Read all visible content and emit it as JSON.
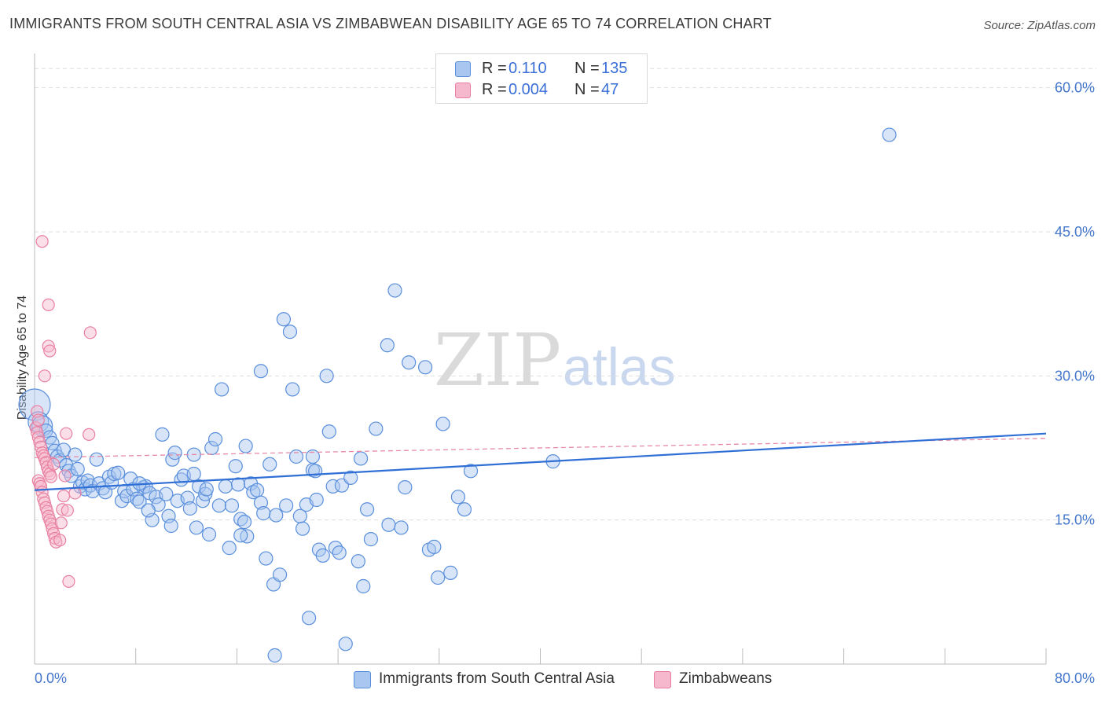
{
  "title": "IMMIGRANTS FROM SOUTH CENTRAL ASIA VS ZIMBABWEAN DISABILITY AGE 65 TO 74 CORRELATION CHART",
  "source": "Source: ZipAtlas.com",
  "watermark": {
    "zip": "ZIP",
    "atlas": "atlas"
  },
  "legend": {
    "rows": [
      {
        "r_key": "R =",
        "r_value": "0.110",
        "n_key": "N =",
        "n_value": "135"
      },
      {
        "r_key": "R =",
        "r_value": "0.004",
        "n_key": "N =",
        "n_value": "47"
      }
    ]
  },
  "bottom_legend": [
    "Immigrants from South Central Asia",
    "Zimbabweans"
  ],
  "colors": {
    "blue_fill": "#a9c6f0",
    "blue_stroke": "#5a8fdc",
    "blue_line": "#2f6fd6",
    "pink_fill": "#f6b8cc",
    "pink_stroke": "#e87fa0",
    "pink_line": "#e68aa6",
    "grid": "#dddddd",
    "tick_text": "#4477cc"
  },
  "chart_data": {
    "type": "scatter",
    "title": "IMMIGRANTS FROM SOUTH CENTRAL ASIA VS ZIMBABWEAN DISABILITY AGE 65 TO 74 CORRELATION CHART",
    "xlabel": "",
    "ylabel": "Disability Age 65 to 74",
    "xlim": [
      0,
      80
    ],
    "ylim": [
      0,
      63
    ],
    "x_tick_labels": [
      "0.0%",
      "80.0%"
    ],
    "y_ticks": [
      15,
      30,
      45,
      60
    ],
    "y_tick_labels": [
      "15.0%",
      "30.0%",
      "45.0%",
      "60.0%"
    ],
    "grid": "horizontal dashed",
    "legend_position": "top-center",
    "series": [
      {
        "name": "Immigrants from South Central Asia",
        "color": "#a9c6f0",
        "stats": {
          "R": 0.11,
          "N": 135
        },
        "trend": {
          "x": [
            0,
            80
          ],
          "y": [
            18.1,
            24.0
          ]
        },
        "points": [
          [
            0.0,
            27.0
          ],
          [
            0.3,
            25.2
          ],
          [
            0.6,
            24.8
          ],
          [
            0.9,
            24.3
          ],
          [
            1.2,
            23.6
          ],
          [
            1.4,
            23.0
          ],
          [
            1.6,
            22.2
          ],
          [
            1.8,
            21.6
          ],
          [
            2.0,
            21.2
          ],
          [
            2.3,
            22.3
          ],
          [
            2.5,
            20.7
          ],
          [
            2.7,
            20.1
          ],
          [
            2.9,
            19.6
          ],
          [
            3.2,
            21.8
          ],
          [
            3.4,
            20.3
          ],
          [
            3.6,
            18.5
          ],
          [
            3.8,
            18.9
          ],
          [
            4.0,
            18.2
          ],
          [
            4.2,
            19.1
          ],
          [
            4.4,
            18.6
          ],
          [
            4.6,
            18.0
          ],
          [
            4.9,
            21.3
          ],
          [
            5.1,
            18.8
          ],
          [
            5.4,
            18.3
          ],
          [
            5.6,
            17.9
          ],
          [
            5.9,
            19.5
          ],
          [
            6.1,
            18.9
          ],
          [
            6.3,
            19.8
          ],
          [
            6.6,
            19.9
          ],
          [
            6.9,
            17.0
          ],
          [
            7.1,
            18.0
          ],
          [
            7.3,
            17.5
          ],
          [
            7.6,
            19.3
          ],
          [
            7.8,
            18.2
          ],
          [
            8.1,
            17.2
          ],
          [
            8.3,
            16.9
          ],
          [
            8.6,
            18.4
          ],
          [
            8.8,
            18.5
          ],
          [
            9.1,
            17.8
          ],
          [
            9.3,
            15.0
          ],
          [
            9.6,
            17.4
          ],
          [
            9.8,
            16.6
          ],
          [
            10.1,
            23.9
          ],
          [
            10.4,
            17.7
          ],
          [
            10.6,
            15.4
          ],
          [
            10.9,
            21.3
          ],
          [
            11.1,
            22.0
          ],
          [
            11.3,
            17.0
          ],
          [
            11.6,
            19.2
          ],
          [
            11.8,
            19.6
          ],
          [
            12.1,
            17.3
          ],
          [
            12.3,
            16.2
          ],
          [
            12.6,
            19.8
          ],
          [
            12.8,
            14.2
          ],
          [
            13.0,
            18.5
          ],
          [
            13.3,
            17.0
          ],
          [
            13.5,
            17.7
          ],
          [
            13.8,
            13.5
          ],
          [
            14.0,
            22.5
          ],
          [
            14.3,
            23.4
          ],
          [
            14.6,
            16.5
          ],
          [
            14.8,
            28.6
          ],
          [
            15.1,
            18.5
          ],
          [
            15.4,
            12.1
          ],
          [
            15.6,
            16.5
          ],
          [
            15.9,
            20.6
          ],
          [
            16.1,
            18.7
          ],
          [
            16.3,
            15.1
          ],
          [
            16.6,
            14.8
          ],
          [
            16.8,
            13.3
          ],
          [
            17.1,
            18.8
          ],
          [
            17.3,
            17.9
          ],
          [
            17.6,
            18.1
          ],
          [
            17.9,
            16.8
          ],
          [
            18.1,
            15.7
          ],
          [
            18.3,
            11.0
          ],
          [
            18.6,
            20.8
          ],
          [
            18.9,
            8.3
          ],
          [
            19.1,
            15.5
          ],
          [
            19.4,
            9.3
          ],
          [
            19.7,
            35.9
          ],
          [
            19.9,
            16.5
          ],
          [
            20.2,
            34.6
          ],
          [
            20.4,
            28.6
          ],
          [
            20.7,
            21.6
          ],
          [
            21.0,
            15.4
          ],
          [
            21.2,
            14.1
          ],
          [
            21.5,
            16.6
          ],
          [
            21.7,
            4.8
          ],
          [
            22.0,
            20.2
          ],
          [
            22.3,
            17.1
          ],
          [
            22.5,
            11.9
          ],
          [
            22.8,
            11.3
          ],
          [
            23.1,
            30.0
          ],
          [
            23.3,
            24.2
          ],
          [
            23.6,
            18.5
          ],
          [
            23.8,
            12.1
          ],
          [
            24.1,
            11.6
          ],
          [
            24.3,
            18.6
          ],
          [
            24.6,
            2.1
          ],
          [
            25.0,
            19.4
          ],
          [
            25.6,
            10.7
          ],
          [
            26.0,
            8.1
          ],
          [
            26.3,
            16.1
          ],
          [
            26.6,
            13.0
          ],
          [
            27.0,
            24.5
          ],
          [
            28.0,
            14.5
          ],
          [
            28.5,
            38.9
          ],
          [
            29.0,
            14.2
          ],
          [
            29.3,
            18.4
          ],
          [
            31.2,
            11.9
          ],
          [
            31.6,
            12.2
          ],
          [
            31.9,
            9.0
          ],
          [
            32.3,
            25.0
          ],
          [
            32.9,
            9.5
          ],
          [
            33.5,
            17.4
          ],
          [
            34.0,
            16.1
          ],
          [
            34.5,
            20.1
          ],
          [
            41.0,
            21.1
          ],
          [
            67.6,
            55.1
          ],
          [
            30.9,
            30.9
          ],
          [
            29.6,
            31.4
          ],
          [
            16.7,
            22.7
          ],
          [
            17.9,
            30.5
          ],
          [
            22.0,
            21.6
          ],
          [
            22.2,
            20.1
          ],
          [
            19.0,
            0.9
          ],
          [
            25.8,
            21.4
          ],
          [
            8.3,
            18.8
          ],
          [
            9.0,
            16.0
          ],
          [
            10.8,
            14.4
          ],
          [
            13.6,
            18.2
          ],
          [
            16.3,
            13.4
          ],
          [
            27.9,
            33.2
          ],
          [
            12.6,
            21.8
          ]
        ]
      },
      {
        "name": "Zimbabweans",
        "color": "#f6b8cc",
        "stats": {
          "R": 0.004,
          "N": 47
        },
        "trend": {
          "x": [
            0,
            80
          ],
          "y": [
            21.5,
            23.5
          ]
        },
        "points": [
          [
            0.1,
            24.6
          ],
          [
            0.2,
            24.1
          ],
          [
            0.3,
            23.6
          ],
          [
            0.4,
            23.1
          ],
          [
            0.5,
            22.6
          ],
          [
            0.6,
            22.0
          ],
          [
            0.7,
            21.7
          ],
          [
            0.8,
            21.4
          ],
          [
            0.9,
            21.0
          ],
          [
            1.0,
            20.5
          ],
          [
            1.1,
            20.1
          ],
          [
            1.2,
            19.8
          ],
          [
            1.3,
            19.5
          ],
          [
            0.3,
            19.1
          ],
          [
            0.4,
            18.8
          ],
          [
            0.5,
            18.5
          ],
          [
            0.6,
            17.9
          ],
          [
            0.7,
            17.2
          ],
          [
            0.8,
            16.8
          ],
          [
            0.9,
            16.3
          ],
          [
            1.0,
            15.9
          ],
          [
            1.1,
            15.4
          ],
          [
            1.2,
            15.0
          ],
          [
            1.3,
            14.6
          ],
          [
            1.4,
            14.1
          ],
          [
            1.5,
            13.6
          ],
          [
            1.6,
            13.1
          ],
          [
            1.7,
            12.7
          ],
          [
            2.0,
            12.9
          ],
          [
            2.1,
            14.7
          ],
          [
            2.2,
            16.1
          ],
          [
            2.3,
            17.5
          ],
          [
            2.4,
            19.6
          ],
          [
            2.5,
            24.0
          ],
          [
            2.6,
            16.0
          ],
          [
            2.7,
            8.6
          ],
          [
            0.6,
            44.0
          ],
          [
            1.1,
            37.4
          ],
          [
            1.1,
            33.1
          ],
          [
            1.2,
            32.6
          ],
          [
            0.8,
            30.0
          ],
          [
            4.4,
            34.5
          ],
          [
            4.3,
            23.9
          ],
          [
            0.2,
            26.3
          ],
          [
            0.3,
            25.4
          ],
          [
            3.2,
            17.8
          ],
          [
            1.5,
            20.8
          ]
        ]
      }
    ]
  }
}
